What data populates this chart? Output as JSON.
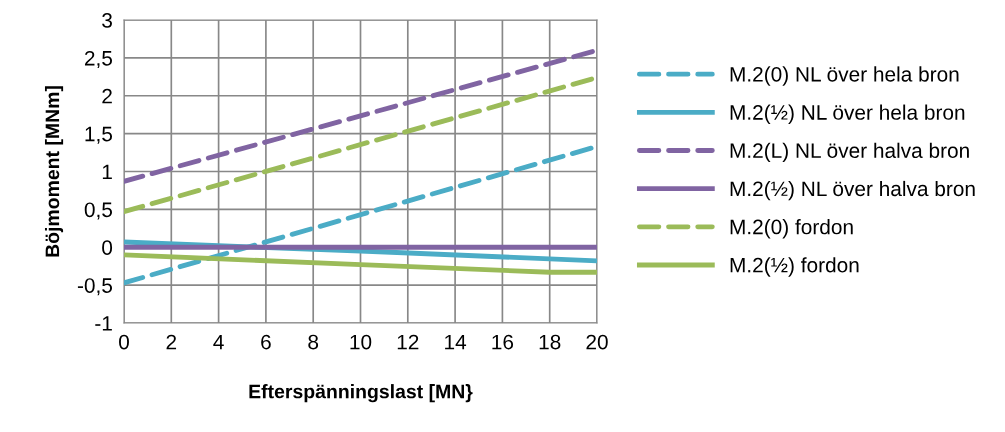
{
  "chart_data": {
    "type": "line",
    "xlabel": "Efterspänningslast [MN}",
    "ylabel": "Böjmoment [MNm]",
    "xlim": [
      0,
      20
    ],
    "xticks": [
      0,
      2,
      4,
      6,
      8,
      10,
      12,
      14,
      16,
      18,
      20
    ],
    "ylim": [
      -1,
      3
    ],
    "yticks": [
      -1,
      {
        "value": -0.5,
        "label": "-0,5"
      },
      0,
      {
        "value": 0.5,
        "label": "0,5"
      },
      1,
      {
        "value": 1.5,
        "label": "1,5"
      },
      2,
      {
        "value": 2.5,
        "label": "2,5"
      },
      3
    ],
    "grid": true,
    "legend": "right",
    "marker": "none",
    "series": [
      {
        "name": "M.2(0) NL över hela bron",
        "color": "#4bacc6",
        "line_style": "dashed",
        "x": [
          0,
          20
        ],
        "values": [
          -0.47,
          1.33
        ]
      },
      {
        "name": "M.2(½) NL över hela bron",
        "color": "#4bacc6",
        "line_style": "solid",
        "x": [
          0,
          4,
          10,
          20
        ],
        "values": [
          0.07,
          0.02,
          -0.05,
          -0.18
        ]
      },
      {
        "name": "M.2(L) NL över halva bron",
        "color": "#8064a2",
        "line_style": "dashed",
        "x": [
          0,
          20
        ],
        "values": [
          0.87,
          2.6
        ]
      },
      {
        "name": "M.2(½) NL över halva bron",
        "color": "#8064a2",
        "line_style": "solid",
        "x": [
          0,
          20
        ],
        "values": [
          0,
          0
        ]
      },
      {
        "name": "M.2(0) fordon",
        "color": "#9bbb59",
        "line_style": "dashed",
        "x": [
          0,
          20
        ],
        "values": [
          0.47,
          2.24
        ]
      },
      {
        "name": "M.2(½) fordon",
        "color": "#9bbb59",
        "line_style": "solid",
        "x": [
          0,
          10,
          18,
          20
        ],
        "values": [
          -0.1,
          -0.23,
          -0.33,
          -0.33
        ]
      }
    ]
  }
}
